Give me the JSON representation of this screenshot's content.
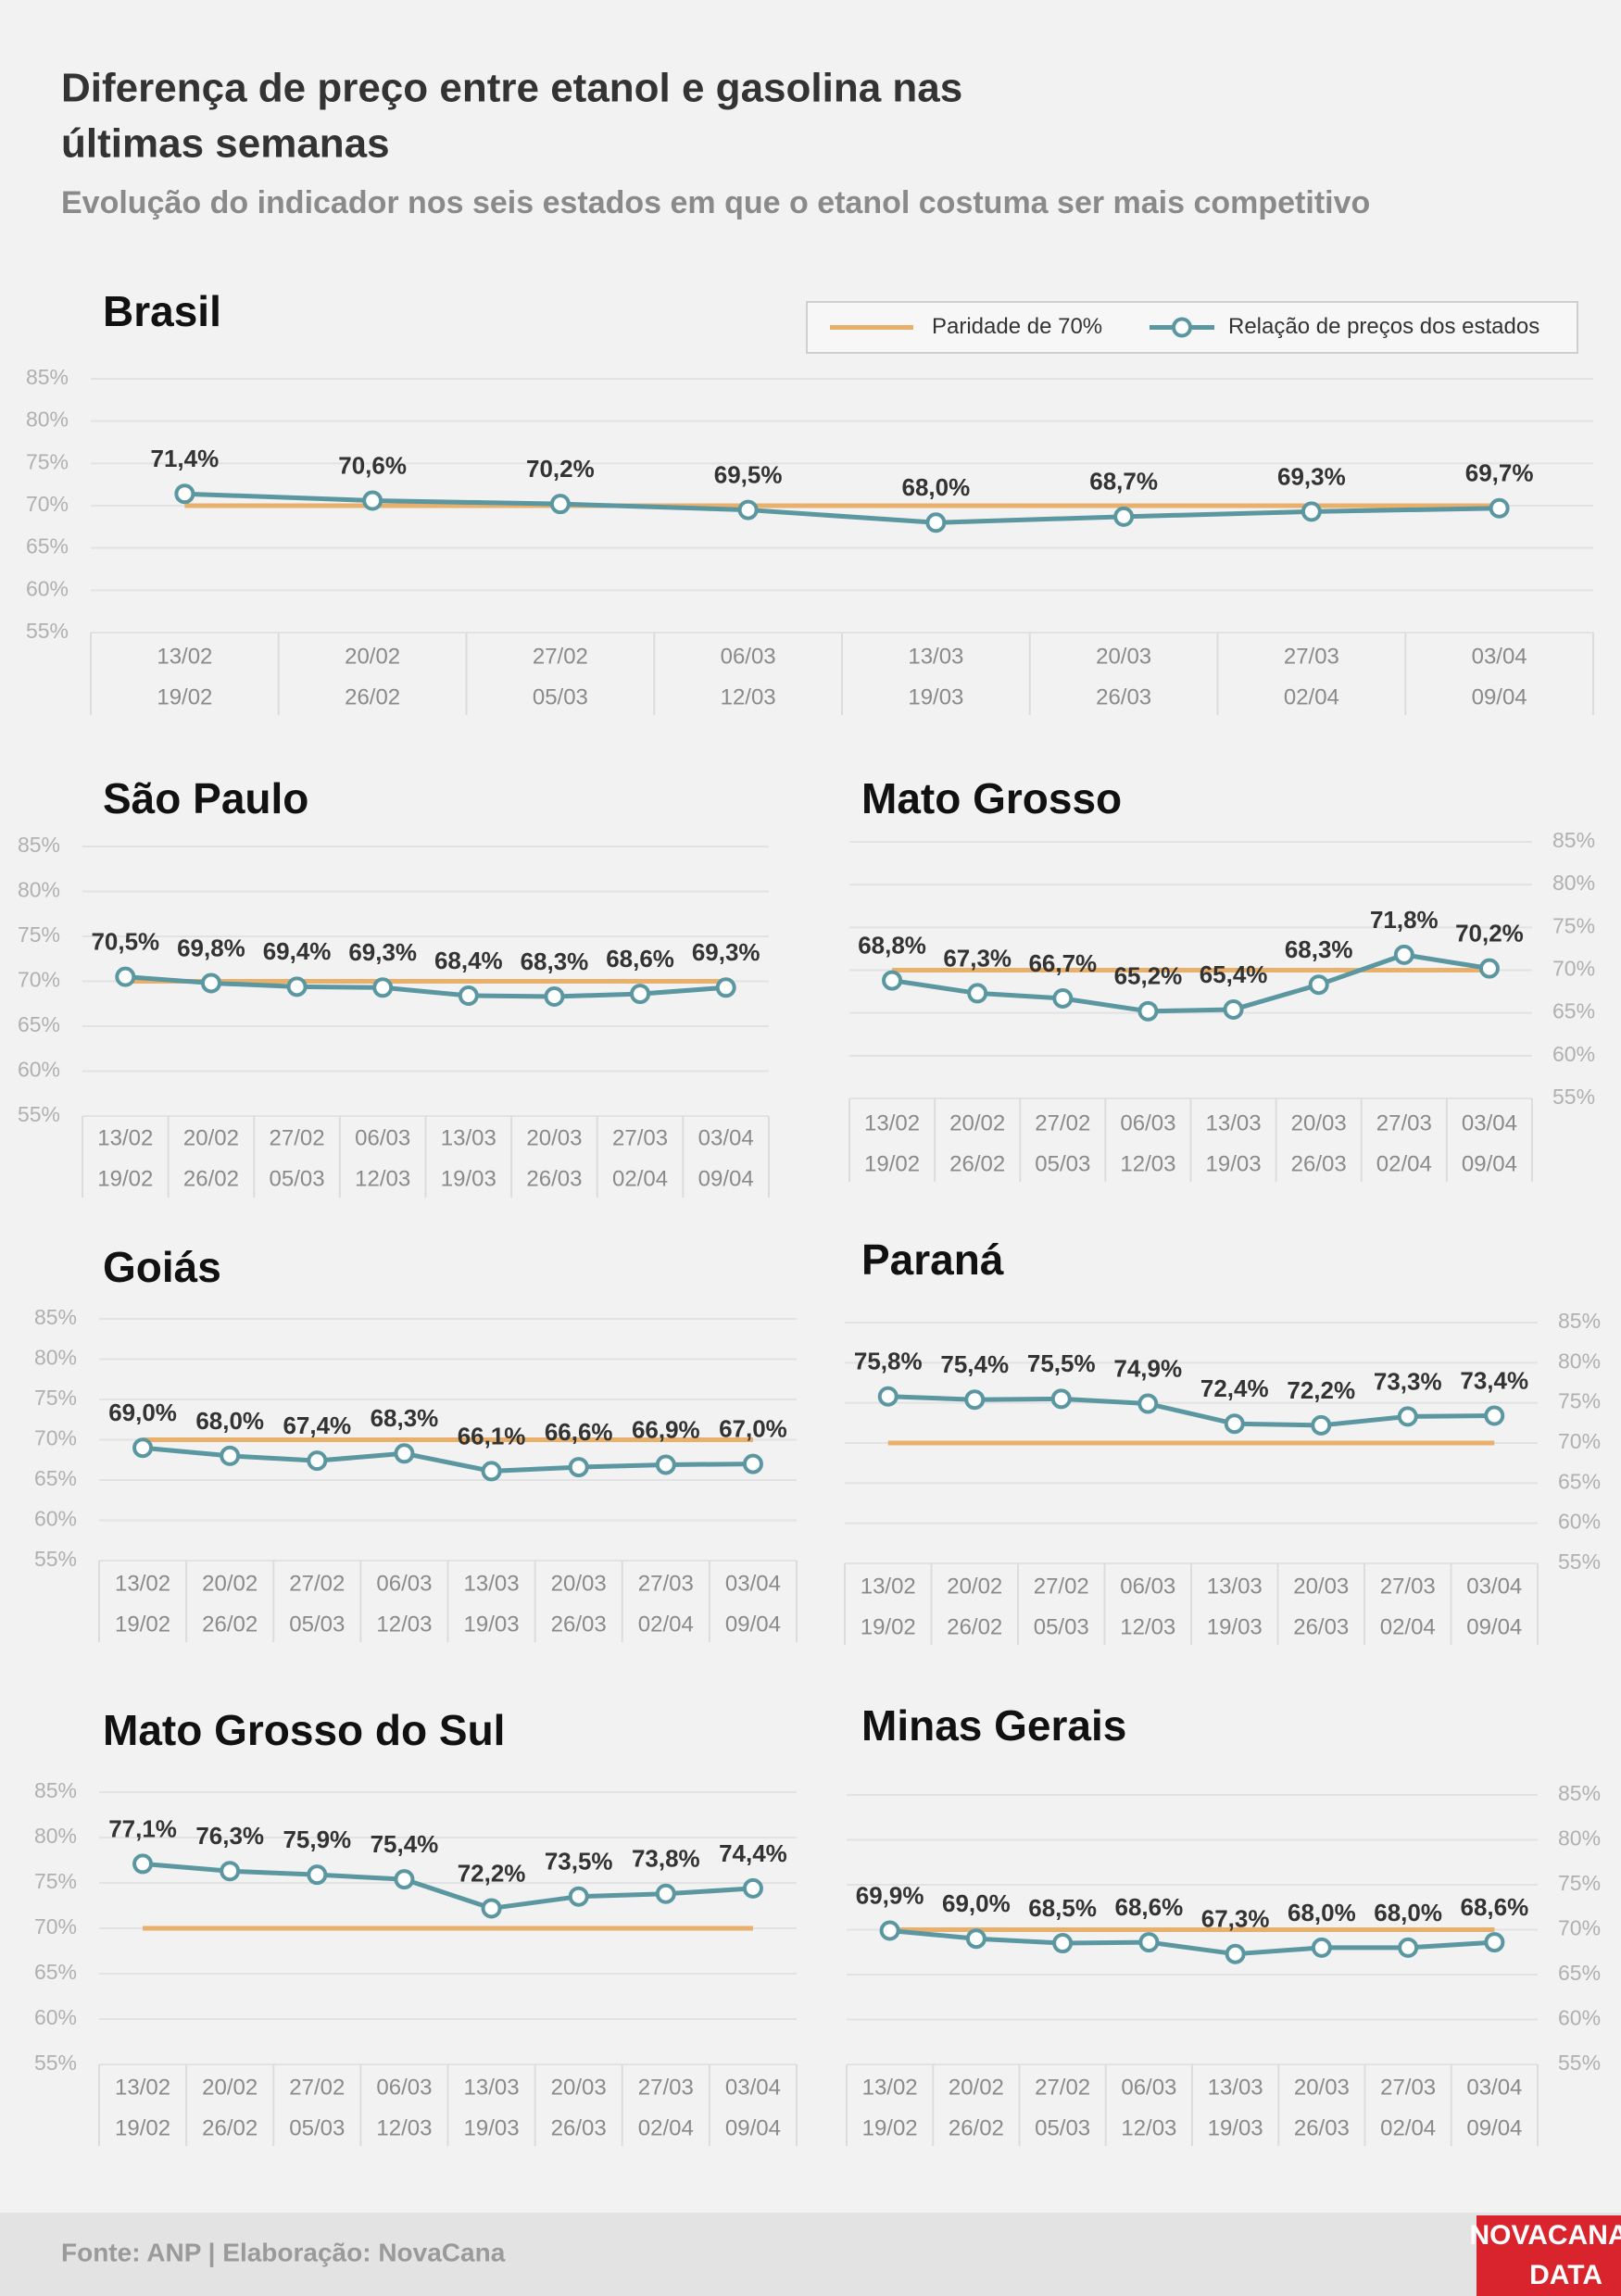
{
  "title_lines": [
    "Diferença de preço entre etanol e gasolina nas",
    "últimas semanas"
  ],
  "subtitle": "Evolução do indicador nos seis estados em que o etanol costuma ser mais competitivo",
  "source": "Fonte: ANP | Elaboração: NovaCana",
  "logo": [
    "NOVACANA",
    "DATA"
  ],
  "chart_data": [
    {
      "type": "line",
      "title": "Brasil",
      "legend": "top right",
      "categories": [
        [
          "13/02",
          "19/02"
        ],
        [
          "20/02",
          "26/02"
        ],
        [
          "27/02",
          "05/03"
        ],
        [
          "06/03",
          "12/03"
        ],
        [
          "13/03",
          "19/03"
        ],
        [
          "20/03",
          "26/03"
        ],
        [
          "27/03",
          "02/04"
        ],
        [
          "03/04",
          "09/04"
        ]
      ],
      "series": [
        {
          "name": "Paridade de 70%",
          "color": "#e8b06a",
          "values": [
            70,
            70,
            70,
            70,
            70,
            70,
            70,
            70
          ]
        },
        {
          "name": "Relação de preços dos estados",
          "color": "#5b97a0",
          "values": [
            71.4,
            70.6,
            70.2,
            69.5,
            68.0,
            68.7,
            69.3,
            69.7
          ],
          "value_labels": [
            "71,4%",
            "70,6%",
            "70,2%",
            "69,5%",
            "68,0%",
            "68,7%",
            "69,3%",
            "69,7%"
          ]
        }
      ],
      "ylim": [
        55,
        85
      ],
      "yaxis_side": "left",
      "grid": true,
      "yticks": [
        {
          "value": 55,
          "label": "55%"
        },
        {
          "value": 60,
          "label": "60%"
        },
        {
          "value": 65,
          "label": "65%"
        },
        {
          "value": 70,
          "label": "70%"
        },
        {
          "value": 75,
          "label": "75%"
        },
        {
          "value": 80,
          "label": "80%"
        },
        {
          "value": 85,
          "label": "85%"
        }
      ]
    },
    {
      "type": "line",
      "title": "São Paulo",
      "categories": [
        [
          "13/02",
          "19/02"
        ],
        [
          "20/02",
          "26/02"
        ],
        [
          "27/02",
          "05/03"
        ],
        [
          "06/03",
          "12/03"
        ],
        [
          "13/03",
          "19/03"
        ],
        [
          "20/03",
          "26/03"
        ],
        [
          "27/03",
          "02/04"
        ],
        [
          "03/04",
          "09/04"
        ]
      ],
      "series": [
        {
          "color": "#e8b06a",
          "values": [
            70,
            70,
            70,
            70,
            70,
            70,
            70,
            70
          ]
        },
        {
          "color": "#5b97a0",
          "values": [
            70.5,
            69.8,
            69.4,
            69.3,
            68.4,
            68.3,
            68.6,
            69.3
          ],
          "value_labels": [
            "70,5%",
            "69,8%",
            "69,4%",
            "69,3%",
            "68,4%",
            "68,3%",
            "68,6%",
            "69,3%"
          ]
        }
      ],
      "ylim": [
        55,
        85
      ],
      "yaxis_side": "left",
      "grid": true,
      "yticks": [
        {
          "value": 55,
          "label": "55%"
        },
        {
          "value": 60,
          "label": "60%"
        },
        {
          "value": 65,
          "label": "65%"
        },
        {
          "value": 70,
          "label": "70%"
        },
        {
          "value": 75,
          "label": "75%"
        },
        {
          "value": 80,
          "label": "80%"
        },
        {
          "value": 85,
          "label": "85%"
        }
      ]
    },
    {
      "type": "line",
      "title": "Mato Grosso",
      "categories": [
        [
          "13/02",
          "19/02"
        ],
        [
          "20/02",
          "26/02"
        ],
        [
          "27/02",
          "05/03"
        ],
        [
          "06/03",
          "12/03"
        ],
        [
          "13/03",
          "19/03"
        ],
        [
          "20/03",
          "26/03"
        ],
        [
          "27/03",
          "02/04"
        ],
        [
          "03/04",
          "09/04"
        ]
      ],
      "series": [
        {
          "color": "#e8b06a",
          "values": [
            70,
            70,
            70,
            70,
            70,
            70,
            70,
            70
          ]
        },
        {
          "color": "#5b97a0",
          "values": [
            68.8,
            67.3,
            66.7,
            65.2,
            65.4,
            68.3,
            71.8,
            70.2
          ],
          "value_labels": [
            "68,8%",
            "67,3%",
            "66,7%",
            "65,2%",
            "65,4%",
            "68,3%",
            "71,8%",
            "70,2%"
          ]
        }
      ],
      "ylim": [
        55,
        85
      ],
      "yaxis_side": "right",
      "grid": true,
      "yticks": [
        {
          "value": 55,
          "label": "55%"
        },
        {
          "value": 60,
          "label": "60%"
        },
        {
          "value": 65,
          "label": "65%"
        },
        {
          "value": 70,
          "label": "70%"
        },
        {
          "value": 75,
          "label": "75%"
        },
        {
          "value": 80,
          "label": "80%"
        },
        {
          "value": 85,
          "label": "85%"
        }
      ]
    },
    {
      "type": "line",
      "title": "Goiás",
      "categories": [
        [
          "13/02",
          "19/02"
        ],
        [
          "20/02",
          "26/02"
        ],
        [
          "27/02",
          "05/03"
        ],
        [
          "06/03",
          "12/03"
        ],
        [
          "13/03",
          "19/03"
        ],
        [
          "20/03",
          "26/03"
        ],
        [
          "27/03",
          "02/04"
        ],
        [
          "03/04",
          "09/04"
        ]
      ],
      "series": [
        {
          "color": "#e8b06a",
          "values": [
            70,
            70,
            70,
            70,
            70,
            70,
            70,
            70
          ]
        },
        {
          "color": "#5b97a0",
          "values": [
            69.0,
            68.0,
            67.4,
            68.3,
            66.1,
            66.6,
            66.9,
            67.0
          ],
          "value_labels": [
            "69,0%",
            "68,0%",
            "67,4%",
            "68,3%",
            "66,1%",
            "66,6%",
            "66,9%",
            "67,0%"
          ]
        }
      ],
      "ylim": [
        55,
        85
      ],
      "yaxis_side": "left",
      "grid": true,
      "yticks": [
        {
          "value": 55,
          "label": "55%"
        },
        {
          "value": 60,
          "label": "60%"
        },
        {
          "value": 65,
          "label": "65%"
        },
        {
          "value": 70,
          "label": "70%"
        },
        {
          "value": 75,
          "label": "75%"
        },
        {
          "value": 80,
          "label": "80%"
        },
        {
          "value": 85,
          "label": "85%"
        }
      ]
    },
    {
      "type": "line",
      "title": "Paraná",
      "categories": [
        [
          "13/02",
          "19/02"
        ],
        [
          "20/02",
          "26/02"
        ],
        [
          "27/02",
          "05/03"
        ],
        [
          "06/03",
          "12/03"
        ],
        [
          "13/03",
          "19/03"
        ],
        [
          "20/03",
          "26/03"
        ],
        [
          "27/03",
          "02/04"
        ],
        [
          "03/04",
          "09/04"
        ]
      ],
      "series": [
        {
          "color": "#e8b06a",
          "values": [
            70,
            70,
            70,
            70,
            70,
            70,
            70,
            70
          ]
        },
        {
          "color": "#5b97a0",
          "values": [
            75.8,
            75.4,
            75.5,
            74.9,
            72.4,
            72.2,
            73.3,
            73.4
          ],
          "value_labels": [
            "75,8%",
            "75,4%",
            "75,5%",
            "74,9%",
            "72,4%",
            "72,2%",
            "73,3%",
            "73,4%"
          ]
        }
      ],
      "ylim": [
        55,
        85
      ],
      "yaxis_side": "right",
      "grid": true,
      "yticks": [
        {
          "value": 55,
          "label": "55%"
        },
        {
          "value": 60,
          "label": "60%"
        },
        {
          "value": 65,
          "label": "65%"
        },
        {
          "value": 70,
          "label": "70%"
        },
        {
          "value": 75,
          "label": "75%"
        },
        {
          "value": 80,
          "label": "80%"
        },
        {
          "value": 85,
          "label": "85%"
        }
      ]
    },
    {
      "type": "line",
      "title": "Mato Grosso do Sul",
      "categories": [
        [
          "13/02",
          "19/02"
        ],
        [
          "20/02",
          "26/02"
        ],
        [
          "27/02",
          "05/03"
        ],
        [
          "06/03",
          "12/03"
        ],
        [
          "13/03",
          "19/03"
        ],
        [
          "20/03",
          "26/03"
        ],
        [
          "27/03",
          "02/04"
        ],
        [
          "03/04",
          "09/04"
        ]
      ],
      "series": [
        {
          "color": "#e8b06a",
          "values": [
            70,
            70,
            70,
            70,
            70,
            70,
            70,
            70
          ]
        },
        {
          "color": "#5b97a0",
          "values": [
            77.1,
            76.3,
            75.9,
            75.4,
            72.2,
            73.5,
            73.8,
            74.4
          ],
          "value_labels": [
            "77,1%",
            "76,3%",
            "75,9%",
            "75,4%",
            "72,2%",
            "73,5%",
            "73,8%",
            "74,4%"
          ]
        }
      ],
      "ylim": [
        55,
        85
      ],
      "yaxis_side": "left",
      "grid": true,
      "yticks": [
        {
          "value": 55,
          "label": "55%"
        },
        {
          "value": 60,
          "label": "60%"
        },
        {
          "value": 65,
          "label": "65%"
        },
        {
          "value": 70,
          "label": "70%"
        },
        {
          "value": 75,
          "label": "75%"
        },
        {
          "value": 80,
          "label": "80%"
        },
        {
          "value": 85,
          "label": "85%"
        }
      ]
    },
    {
      "type": "line",
      "title": "Minas Gerais",
      "categories": [
        [
          "13/02",
          "19/02"
        ],
        [
          "20/02",
          "26/02"
        ],
        [
          "27/02",
          "05/03"
        ],
        [
          "06/03",
          "12/03"
        ],
        [
          "13/03",
          "19/03"
        ],
        [
          "20/03",
          "26/03"
        ],
        [
          "27/03",
          "02/04"
        ],
        [
          "03/04",
          "09/04"
        ]
      ],
      "series": [
        {
          "color": "#e8b06a",
          "values": [
            70,
            70,
            70,
            70,
            70,
            70,
            70,
            70
          ]
        },
        {
          "color": "#5b97a0",
          "values": [
            69.9,
            69.0,
            68.5,
            68.6,
            67.3,
            68.0,
            68.0,
            68.6
          ],
          "value_labels": [
            "69,9%",
            "69,0%",
            "68,5%",
            "68,6%",
            "67,3%",
            "68,0%",
            "68,0%",
            "68,6%"
          ]
        }
      ],
      "ylim": [
        55,
        85
      ],
      "yaxis_side": "right",
      "grid": true,
      "yticks": [
        {
          "value": 55,
          "label": "55%"
        },
        {
          "value": 60,
          "label": "60%"
        },
        {
          "value": 65,
          "label": "65%"
        },
        {
          "value": 70,
          "label": "70%"
        },
        {
          "value": 75,
          "label": "75%"
        },
        {
          "value": 80,
          "label": "80%"
        },
        {
          "value": 85,
          "label": "85%"
        }
      ]
    }
  ]
}
